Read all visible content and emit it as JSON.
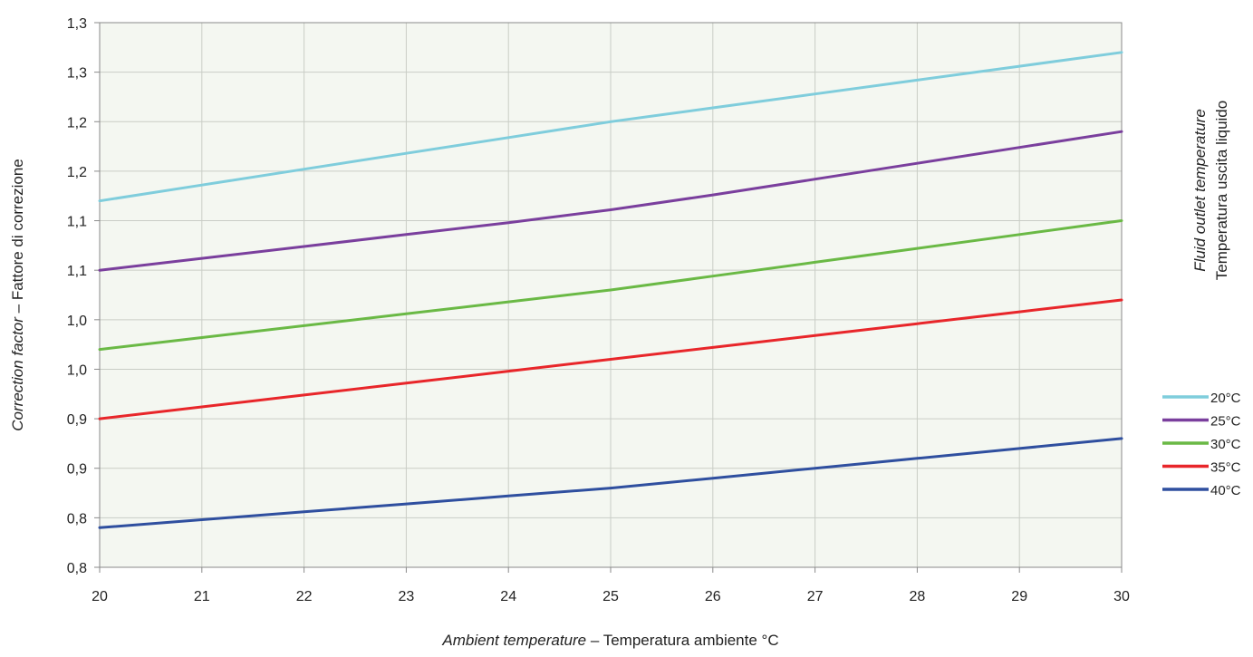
{
  "chart_data": {
    "type": "line",
    "xlabel": {
      "italic": "Ambient temperature",
      "rest": " – Temperatura ambiente °C"
    },
    "ylabel": {
      "italic": "Correction factor",
      "rest": " – Fattore di correzione"
    },
    "legend_title": {
      "italic": "Fluid outlet temperature",
      "rest": "Temperatura uscita liquido"
    },
    "legend_position": "right",
    "grid": true,
    "plot_background": "#f4f7f1",
    "grid_color": "#c9cdc6",
    "xlim": [
      20,
      30
    ],
    "ylim": [
      0.75,
      1.3
    ],
    "x_ticks": [
      20,
      21,
      22,
      23,
      24,
      25,
      26,
      27,
      28,
      29,
      30
    ],
    "y_tick_values": [
      0.75,
      0.8,
      0.85,
      0.9,
      0.95,
      1.0,
      1.05,
      1.1,
      1.15,
      1.2,
      1.25,
      1.3
    ],
    "y_tick_labels": [
      "0,8",
      "0,8",
      "0,9",
      "0,9",
      "1,0",
      "1,0",
      "1,1",
      "1,1",
      "1,2",
      "1,2",
      "1,3",
      "1,3"
    ],
    "x": [
      20,
      21,
      22,
      23,
      24,
      25,
      26,
      27,
      28,
      29,
      30
    ],
    "series": [
      {
        "name": "20°C",
        "color": "#7fcddc",
        "values": [
          1.12,
          1.136,
          1.152,
          1.168,
          1.184,
          1.2,
          1.214,
          1.228,
          1.242,
          1.256,
          1.27
        ]
      },
      {
        "name": "25°C",
        "color": "#7a3f9d",
        "values": [
          1.05,
          1.062,
          1.074,
          1.086,
          1.098,
          1.111,
          1.126,
          1.142,
          1.158,
          1.174,
          1.19
        ]
      },
      {
        "name": "30°C",
        "color": "#6ab945",
        "values": [
          0.97,
          0.982,
          0.994,
          1.006,
          1.018,
          1.03,
          1.044,
          1.058,
          1.072,
          1.086,
          1.1
        ]
      },
      {
        "name": "35°C",
        "color": "#e8262a",
        "values": [
          0.9,
          0.912,
          0.924,
          0.936,
          0.948,
          0.96,
          0.972,
          0.984,
          0.996,
          1.008,
          1.02
        ]
      },
      {
        "name": "40°C",
        "color": "#2f4f9f",
        "values": [
          0.79,
          0.798,
          0.806,
          0.814,
          0.822,
          0.83,
          0.84,
          0.85,
          0.86,
          0.87,
          0.88
        ]
      }
    ]
  }
}
